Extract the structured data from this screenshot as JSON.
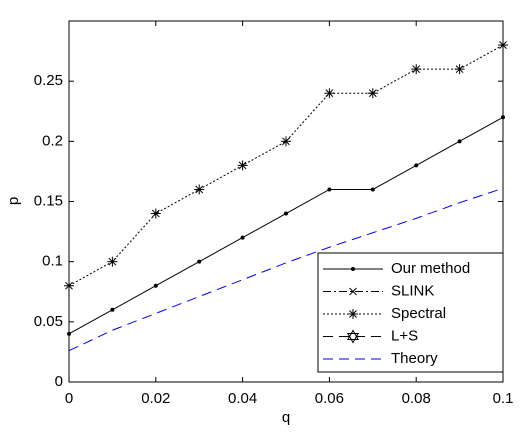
{
  "chart_data": {
    "type": "line",
    "xlabel": "q",
    "ylabel": "p",
    "x": [
      0,
      0.01,
      0.02,
      0.03,
      0.04,
      0.05,
      0.06,
      0.07,
      0.08,
      0.09,
      0.1
    ],
    "series": [
      {
        "name": "Our method",
        "color": "#000000",
        "style": "solid",
        "marker": "dot",
        "values": [
          0.04,
          0.06,
          0.08,
          0.1,
          0.12,
          0.14,
          0.16,
          0.16,
          0.18,
          0.2,
          0.22
        ]
      },
      {
        "name": "SLINK",
        "color": "#000000",
        "style": "dashdot",
        "marker": "x",
        "values": [
          null,
          null,
          null,
          null,
          null,
          null,
          null,
          null,
          null,
          null,
          null
        ]
      },
      {
        "name": "Spectral",
        "color": "#000000",
        "style": "dotted",
        "marker": "asterisk",
        "values": [
          0.08,
          0.1,
          0.14,
          0.16,
          0.18,
          0.2,
          0.24,
          0.24,
          0.26,
          0.26,
          0.28
        ]
      },
      {
        "name": "L+S",
        "color": "#000000",
        "style": "dashed",
        "marker": "hexagram",
        "values": [
          null,
          null,
          null,
          null,
          null,
          null,
          null,
          null,
          null,
          null,
          null
        ]
      },
      {
        "name": "Theory",
        "color": "#0000ff",
        "style": "dashed",
        "marker": "none",
        "values": [
          0.026,
          0.043,
          0.057,
          0.071,
          0.085,
          0.099,
          0.112,
          0.124,
          0.136,
          0.149,
          0.161
        ]
      }
    ],
    "xlim": [
      0,
      0.1
    ],
    "xticks": [
      0,
      0.02,
      0.04,
      0.06,
      0.08,
      0.1
    ],
    "ylim": [
      0,
      0.3
    ],
    "yticks": [
      0,
      0.05,
      0.1,
      0.15,
      0.2,
      0.25
    ],
    "grid": false,
    "legend": "lower right"
  }
}
